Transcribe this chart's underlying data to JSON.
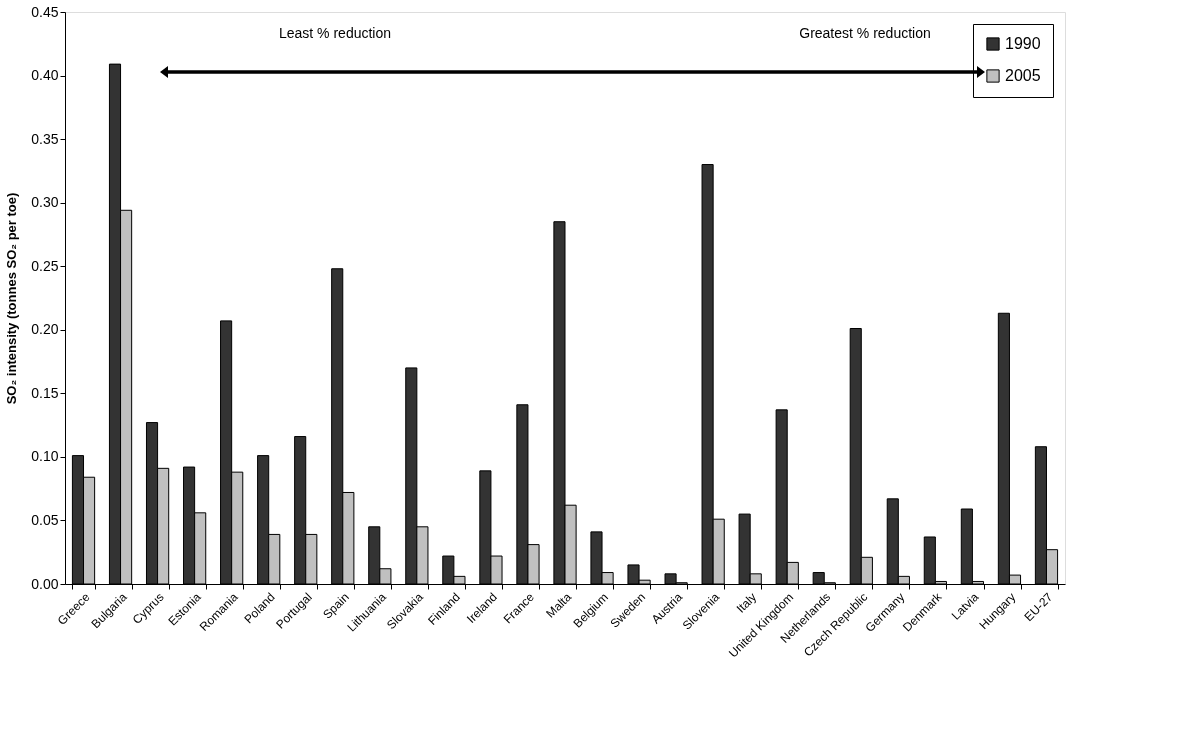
{
  "chart_data": {
    "type": "bar",
    "categories": [
      "Greece",
      "Bulgaria",
      "Cyprus",
      "Estonia",
      "Romania",
      "Poland",
      "Portugal",
      "Spain",
      "Lithuania",
      "Slovakia",
      "Finland",
      "Ireland",
      "France",
      "Malta",
      "Belgium",
      "Sweden",
      "Austria",
      "Slovenia",
      "Italy",
      "United Kingdom",
      "Netherlands",
      "Czech Republic",
      "Germany",
      "Denmark",
      "Latvia",
      "Hungary",
      "EU-27"
    ],
    "series": [
      {
        "name": "1990",
        "color": "#333333",
        "values": [
          0.101,
          0.409,
          0.127,
          0.092,
          0.207,
          0.101,
          0.116,
          0.248,
          0.045,
          0.17,
          0.022,
          0.089,
          0.141,
          0.285,
          0.041,
          0.015,
          0.008,
          0.33,
          0.055,
          0.137,
          0.009,
          0.201,
          0.067,
          0.037,
          0.059,
          0.213,
          0.108
        ]
      },
      {
        "name": "2005",
        "color": "#c0c0c0",
        "values": [
          0.084,
          0.294,
          0.091,
          0.056,
          0.088,
          0.039,
          0.039,
          0.072,
          0.012,
          0.045,
          0.006,
          0.022,
          0.031,
          0.062,
          0.009,
          0.003,
          0.001,
          0.051,
          0.008,
          0.017,
          0.001,
          0.021,
          0.006,
          0.002,
          0.002,
          0.007,
          0.027
        ]
      }
    ],
    "ylabel": "SO₂ intensity (tonnes SO₂ per toe)",
    "ylim": [
      0,
      0.45
    ],
    "yticks": [
      {
        "value": 0,
        "label": "0.00"
      },
      0.05,
      {
        "value": 0.1,
        "label": "0.10"
      },
      0.15,
      {
        "value": 0.2,
        "label": "0.20"
      },
      0.25,
      {
        "value": 0.3,
        "label": "0.30"
      },
      0.35,
      {
        "value": 0.4,
        "label": "0.40"
      },
      0.45
    ],
    "annotations": [
      "Least % reduction",
      "Greatest % reduction"
    ],
    "legend": "top right",
    "grid": false
  }
}
